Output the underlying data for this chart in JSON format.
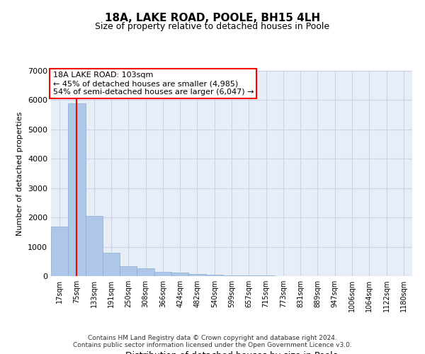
{
  "title": "18A, LAKE ROAD, POOLE, BH15 4LH",
  "subtitle": "Size of property relative to detached houses in Poole",
  "xlabel": "Distribution of detached houses by size in Poole",
  "ylabel": "Number of detached properties",
  "bin_labels": [
    "17sqm",
    "75sqm",
    "133sqm",
    "191sqm",
    "250sqm",
    "308sqm",
    "366sqm",
    "424sqm",
    "482sqm",
    "540sqm",
    "599sqm",
    "657sqm",
    "715sqm",
    "773sqm",
    "831sqm",
    "889sqm",
    "947sqm",
    "1006sqm",
    "1064sqm",
    "1122sqm",
    "1180sqm"
  ],
  "bar_values": [
    1700,
    5900,
    2050,
    800,
    350,
    270,
    150,
    120,
    80,
    50,
    30,
    20,
    15,
    0,
    0,
    0,
    0,
    0,
    0,
    0,
    0
  ],
  "bar_color": "#aec6e8",
  "red_line_x": 1.5,
  "annotation_text": "18A LAKE ROAD: 103sqm\n← 45% of detached houses are smaller (4,985)\n54% of semi-detached houses are larger (6,047) →",
  "ylim": [
    0,
    7000
  ],
  "yticks": [
    0,
    1000,
    2000,
    3000,
    4000,
    5000,
    6000,
    7000
  ],
  "grid_color": "#c8d4e8",
  "background_color": "#e8eef8",
  "footer_line1": "Contains HM Land Registry data © Crown copyright and database right 2024.",
  "footer_line2": "Contains public sector information licensed under the Open Government Licence v3.0."
}
